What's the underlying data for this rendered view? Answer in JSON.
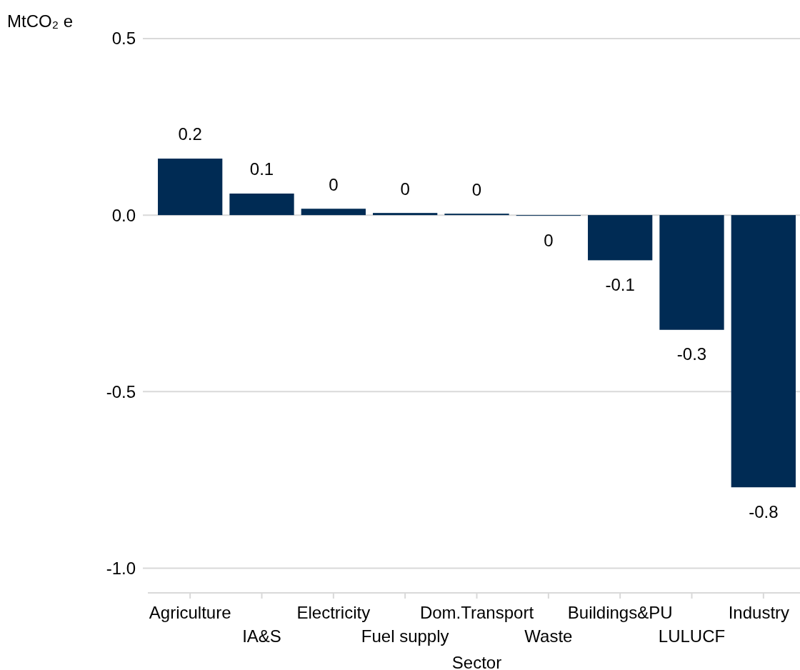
{
  "chart_data": {
    "type": "bar",
    "xlabel": "Sector",
    "ylabel": "MtCO₂ e",
    "categories": [
      "Agriculture",
      "IA&S",
      "Electricity",
      "Fuel supply",
      "Dom.Transport",
      "Waste",
      "Buildings&PU",
      "LULUCF",
      "Industry"
    ],
    "values": [
      0.16,
      0.061,
      0.018,
      0.006,
      0.004,
      -0.002,
      -0.128,
      -0.325,
      -0.771
    ],
    "value_labels": [
      "0.2",
      "0.1",
      "0",
      "0",
      "0",
      "0",
      "-0.1",
      "-0.3",
      "-0.8"
    ],
    "color": "#002b54",
    "ylim": [
      -1.07,
      0.5
    ],
    "yticks": [
      {
        "value": 0.5,
        "label": "0.5"
      },
      {
        "value": 0,
        "label": "0.0"
      },
      {
        "value": -0.5,
        "label": "-0.5"
      },
      {
        "value": -1,
        "label": "-1.0"
      }
    ],
    "grid": "y"
  }
}
